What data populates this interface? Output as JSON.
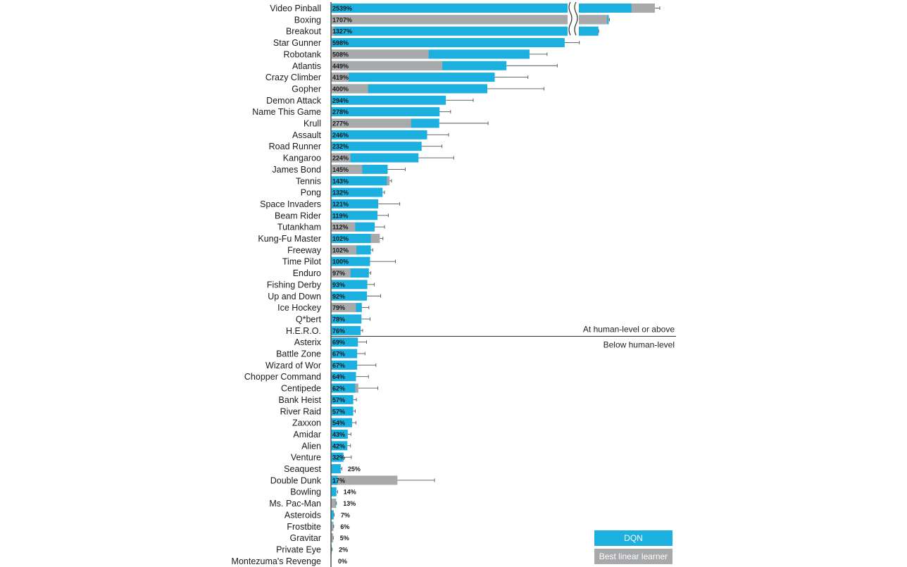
{
  "chart_data": {
    "type": "bar",
    "orientation": "horizontal",
    "title": "",
    "xlabel": "",
    "ylabel": "",
    "axis_break": true,
    "colors": {
      "dqn": "#1bb0e0",
      "linear": "#a8a9ab",
      "errorbar": "#555555"
    },
    "legend": {
      "placement": "bottom-right",
      "dqn_label": "DQN",
      "linear_label": "Best linear learner"
    },
    "threshold": {
      "value": 75,
      "above_label": "At human-level or above",
      "below_label": "Below human-level"
    },
    "rows": [
      {
        "game": "Video Pinball",
        "dqn": 2539,
        "linear": 3400,
        "err": 180,
        "label": "2539%"
      },
      {
        "game": "Boxing",
        "dqn": 1707,
        "linear": 1650,
        "err": 25,
        "label": "1707%"
      },
      {
        "game": "Breakout",
        "dqn": 1327,
        "linear": 8,
        "err": 10,
        "label": "1327%"
      },
      {
        "game": "Star Gunner",
        "dqn": 598,
        "linear": 0,
        "err": 30,
        "label": "598%"
      },
      {
        "game": "Robotank",
        "dqn": 508,
        "linear": 250,
        "err": 45,
        "label": "508%"
      },
      {
        "game": "Atlantis",
        "dqn": 449,
        "linear": 285,
        "err": 130,
        "label": "449%"
      },
      {
        "game": "Crazy Climber",
        "dqn": 419,
        "linear": 45,
        "err": 85,
        "label": "419%"
      },
      {
        "game": "Gopher",
        "dqn": 400,
        "linear": 95,
        "err": 145,
        "label": "400%"
      },
      {
        "game": "Demon Attack",
        "dqn": 294,
        "linear": 0,
        "err": 70,
        "label": "294%"
      },
      {
        "game": "Name This Game",
        "dqn": 278,
        "linear": 0,
        "err": 28,
        "label": "278%"
      },
      {
        "game": "Krull",
        "dqn": 277,
        "linear": 205,
        "err": 125,
        "label": "277%"
      },
      {
        "game": "Assault",
        "dqn": 246,
        "linear": 0,
        "err": 55,
        "label": "246%"
      },
      {
        "game": "Road Runner",
        "dqn": 232,
        "linear": 0,
        "err": 52,
        "label": "232%"
      },
      {
        "game": "Kangaroo",
        "dqn": 224,
        "linear": 50,
        "err": 90,
        "label": "224%"
      },
      {
        "game": "James Bond",
        "dqn": 145,
        "linear": 80,
        "err": 45,
        "label": "145%"
      },
      {
        "game": "Tennis",
        "dqn": 143,
        "linear": 150,
        "err": 5,
        "label": "143%"
      },
      {
        "game": "Pong",
        "dqn": 132,
        "linear": 0,
        "err": 5,
        "label": "132%"
      },
      {
        "game": "Space Invaders",
        "dqn": 121,
        "linear": 0,
        "err": 55,
        "label": "121%"
      },
      {
        "game": "Beam Rider",
        "dqn": 119,
        "linear": 0,
        "err": 28,
        "label": "119%"
      },
      {
        "game": "Tutankham",
        "dqn": 112,
        "linear": 62,
        "err": 25,
        "label": "112%"
      },
      {
        "game": "Kung-Fu Master",
        "dqn": 102,
        "linear": 125,
        "err": 8,
        "label": "102%"
      },
      {
        "game": "Freeway",
        "dqn": 102,
        "linear": 65,
        "err": 5,
        "label": "102%"
      },
      {
        "game": "Time Pilot",
        "dqn": 100,
        "linear": 0,
        "err": 65,
        "label": "100%"
      },
      {
        "game": "Enduro",
        "dqn": 97,
        "linear": 50,
        "err": 5,
        "label": "97%"
      },
      {
        "game": "Fishing Derby",
        "dqn": 93,
        "linear": 0,
        "err": 18,
        "label": "93%"
      },
      {
        "game": "Up and Down",
        "dqn": 92,
        "linear": 0,
        "err": 35,
        "label": "92%"
      },
      {
        "game": "Ice Hockey",
        "dqn": 79,
        "linear": 64,
        "err": 18,
        "label": "79%"
      },
      {
        "game": "Q*bert",
        "dqn": 78,
        "linear": 0,
        "err": 22,
        "label": "78%"
      },
      {
        "game": "H.E.R.O.",
        "dqn": 76,
        "linear": 0,
        "err": 5,
        "label": "76%"
      },
      {
        "game": "Asterix",
        "dqn": 69,
        "linear": 0,
        "err": 22,
        "label": "69%"
      },
      {
        "game": "Battle Zone",
        "dqn": 67,
        "linear": 0,
        "err": 20,
        "label": "67%"
      },
      {
        "game": "Wizard of Wor",
        "dqn": 67,
        "linear": 0,
        "err": 48,
        "label": "67%"
      },
      {
        "game": "Chopper Command",
        "dqn": 64,
        "linear": 0,
        "err": 32,
        "label": "64%"
      },
      {
        "game": "Centipede",
        "dqn": 62,
        "linear": 70,
        "err": 50,
        "label": "62%"
      },
      {
        "game": "Bank Heist",
        "dqn": 57,
        "linear": 0,
        "err": 8,
        "label": "57%"
      },
      {
        "game": "River Raid",
        "dqn": 57,
        "linear": 0,
        "err": 5,
        "label": "57%"
      },
      {
        "game": "Zaxxon",
        "dqn": 54,
        "linear": 0,
        "err": 10,
        "label": "54%"
      },
      {
        "game": "Amidar",
        "dqn": 43,
        "linear": 0,
        "err": 8,
        "label": "43%"
      },
      {
        "game": "Alien",
        "dqn": 42,
        "linear": 0,
        "err": 8,
        "label": "42%"
      },
      {
        "game": "Venture",
        "dqn": 32,
        "linear": 0,
        "err": 20,
        "label": "32%"
      },
      {
        "game": "Seaquest",
        "dqn": 25,
        "linear": 0,
        "err": 3,
        "label": "25%"
      },
      {
        "game": "Double Dunk",
        "dqn": 17,
        "linear": 170,
        "err": 95,
        "label": "17%"
      },
      {
        "game": "Bowling",
        "dqn": 14,
        "linear": 0,
        "err": 3,
        "label": "14%"
      },
      {
        "game": "Ms. Pac-Man",
        "dqn": 13,
        "linear": 12,
        "err": 1,
        "label": "13%"
      },
      {
        "game": "Asteroids",
        "dqn": 7,
        "linear": 0,
        "err": 1,
        "label": "7%"
      },
      {
        "game": "Frostbite",
        "dqn": 6,
        "linear": 5,
        "err": 1,
        "label": "6%"
      },
      {
        "game": "Gravitar",
        "dqn": 5,
        "linear": 5,
        "err": 1,
        "label": "5%"
      },
      {
        "game": "Private Eye",
        "dqn": 2,
        "linear": 0,
        "err": 1,
        "label": "2%"
      },
      {
        "game": "Montezuma's Revenge",
        "dqn": 0,
        "linear": 0,
        "err": 0,
        "label": "0%"
      }
    ]
  }
}
